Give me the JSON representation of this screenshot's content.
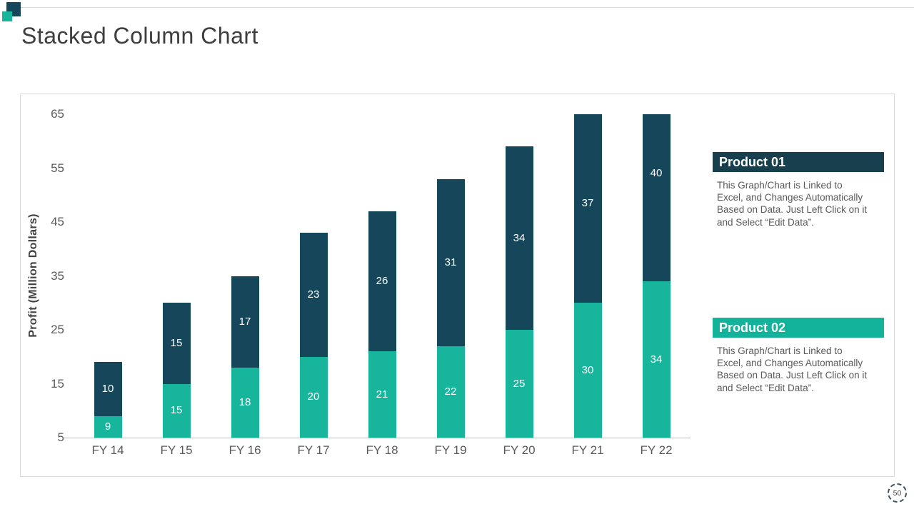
{
  "slide": {
    "title": "Stacked Column Chart",
    "page_number": "50"
  },
  "colors": {
    "navy_bar": "#15465A",
    "teal_bar": "#17B69C",
    "navy_header": "#173F4E",
    "teal_header": "#13B29A",
    "axis_line": "#BFBFBF",
    "frame_border": "#D9D9D9"
  },
  "chart_data": {
    "type": "bar",
    "stacked": true,
    "categories": [
      "FY 14",
      "FY 15",
      "FY 16",
      "FY 17",
      "FY 18",
      "FY 19",
      "FY 20",
      "FY 21",
      "FY 22"
    ],
    "series": [
      {
        "name": "Product 01",
        "color": "#15465A",
        "position": "top",
        "values": [
          10,
          15,
          17,
          23,
          26,
          31,
          34,
          37,
          40
        ]
      },
      {
        "name": "Product 02",
        "color": "#17B69C",
        "position": "bottom",
        "values": [
          9,
          15,
          18,
          20,
          21,
          22,
          25,
          30,
          34
        ]
      }
    ],
    "xlabel": "",
    "ylabel": "Profit  (Million Dollars)",
    "y_ticks": [
      65,
      55,
      45,
      35,
      25,
      15,
      5
    ],
    "ylim": [
      5,
      65
    ],
    "grid": false,
    "data_labels": "inside-center",
    "legend_position": "right-panels"
  },
  "panels": [
    {
      "title": "Product 01",
      "color": "#173F4E",
      "lines": [
        "This Graph/Chart is Linked to",
        "Excel, and Changes Automatically",
        "Based on Data. Just Left Click on it",
        "and Select “Edit Data”."
      ]
    },
    {
      "title": "Product 02",
      "color": "#13B29A",
      "lines": [
        "This Graph/Chart is Linked to",
        "Excel, and Changes Automatically",
        "Based on Data. Just Left Click on it",
        "and Select “Edit Data”."
      ]
    }
  ]
}
